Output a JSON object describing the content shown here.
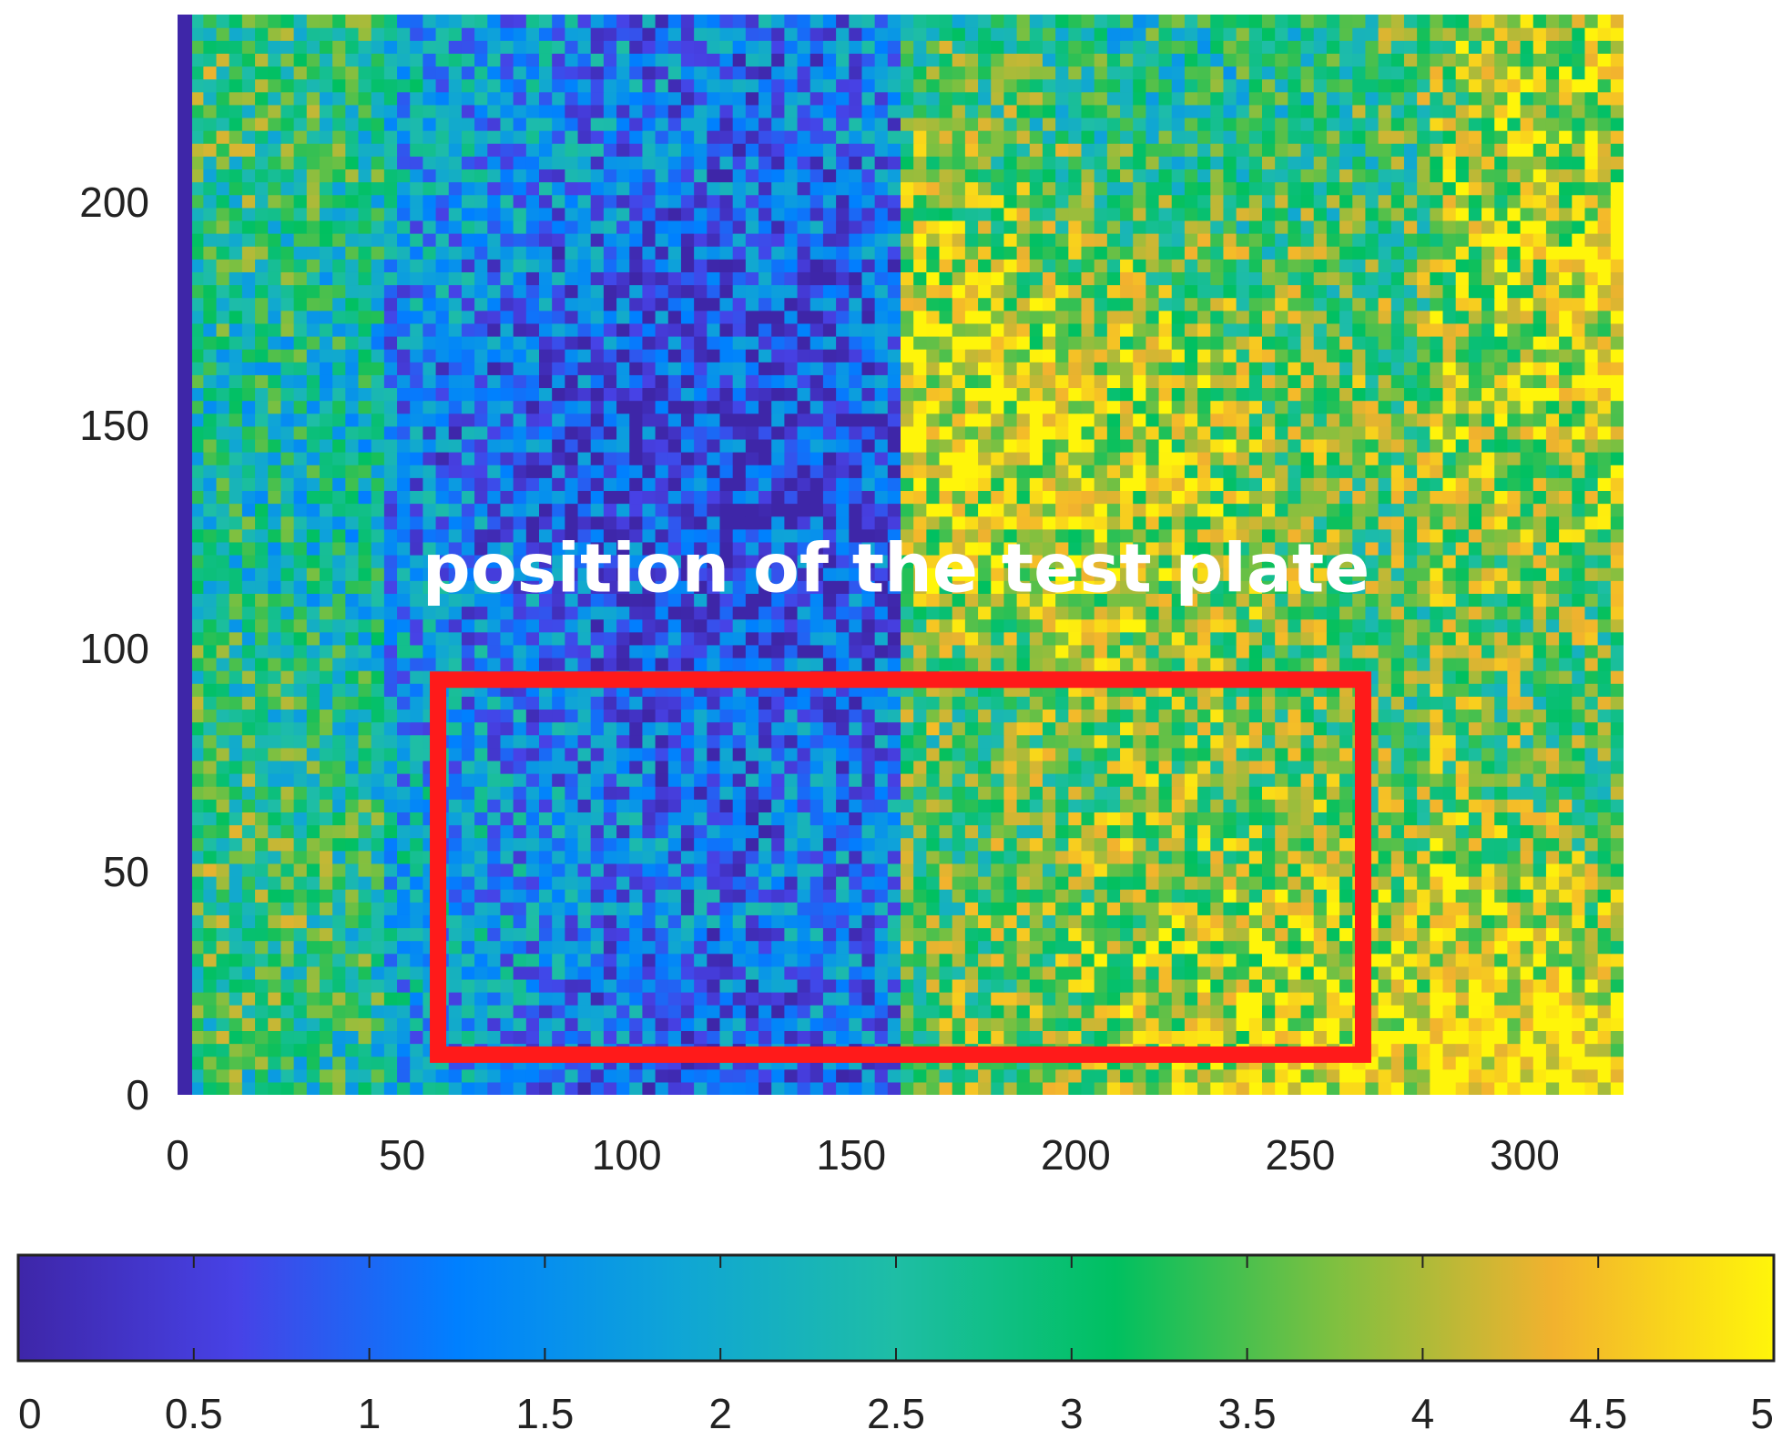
{
  "chart_data": {
    "type": "heatmap",
    "title": "",
    "xlabel": "",
    "ylabel": "",
    "xlim": [
      0,
      322
    ],
    "ylim": [
      0,
      242
    ],
    "x_ticks": [
      "0",
      "50",
      "100",
      "150",
      "200",
      "250",
      "300"
    ],
    "y_ticks": [
      "0",
      "50",
      "100",
      "150",
      "200"
    ],
    "colormap": "parula",
    "colormap_stops": [
      "#3e26a8",
      "#4742e6",
      "#0080ff",
      "#0fa5d6",
      "#1ebea5",
      "#00c060",
      "#7fc040",
      "#f2b22e",
      "#fff50a"
    ],
    "colorbar": {
      "orientation": "horizontal",
      "range": [
        0,
        5
      ],
      "ticks": [
        "0",
        "0.5",
        "1",
        "1.5",
        "2",
        "2.5",
        "3",
        "3.5",
        "4",
        "4.5",
        "5"
      ]
    },
    "regions_mean_value": {
      "left_x_0_to_160": 1.5,
      "right_x_160_to_322": 3.6
    },
    "annotation": {
      "text": "position of the test plate",
      "x": 160,
      "y": 118
    },
    "highlight_rectangle": {
      "x": [
        58,
        264
      ],
      "y": [
        9,
        93
      ],
      "color": "#ff1a1a"
    }
  }
}
